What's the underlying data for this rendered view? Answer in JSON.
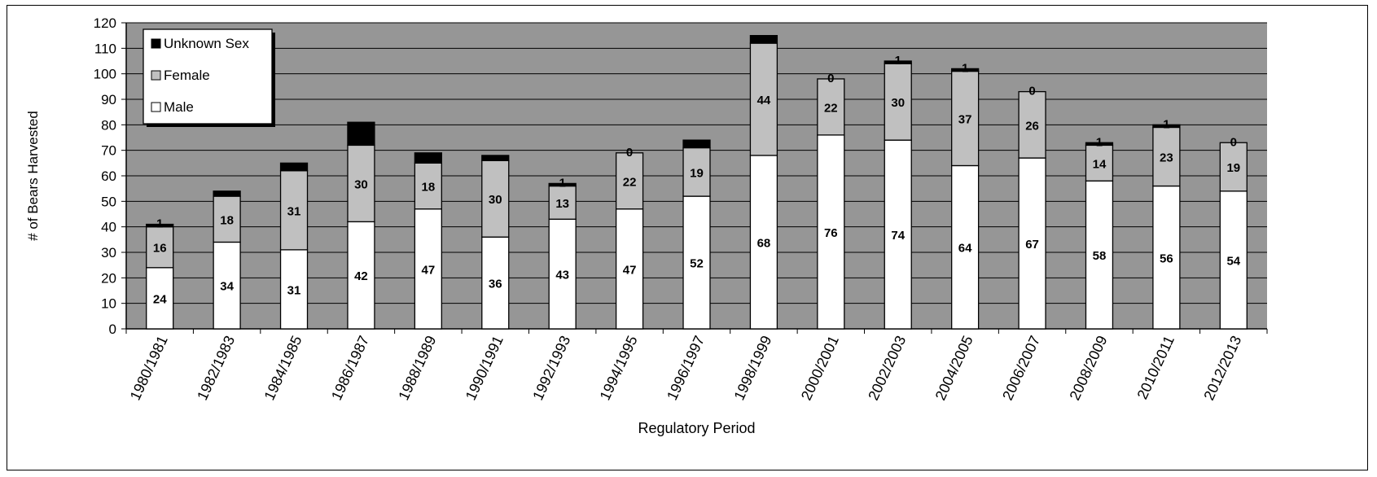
{
  "chart_data": {
    "type": "bar",
    "stacked": true,
    "title": "",
    "xlabel": "Regulatory Period",
    "ylabel": "# of Bears Harvested",
    "ylim": [
      0,
      120
    ],
    "yticks": [
      0,
      10,
      20,
      30,
      40,
      50,
      60,
      70,
      80,
      90,
      100,
      110,
      120
    ],
    "grid": true,
    "legend_position": "top-left",
    "categories": [
      "1980/1981",
      "1982/1983",
      "1984/1985",
      "1986/1987",
      "1988/1989",
      "1990/1991",
      "1992/1993",
      "1994/1995",
      "1996/1997",
      "1998/1999",
      "2000/2001",
      "2002/2003",
      "2004/2005",
      "2006/2007",
      "2008/2009",
      "2010/2011",
      "2012/2013"
    ],
    "series": [
      {
        "name": "Male",
        "color": "#ffffff",
        "values": [
          24,
          34,
          31,
          42,
          47,
          36,
          43,
          47,
          52,
          68,
          76,
          74,
          64,
          67,
          58,
          56,
          54
        ]
      },
      {
        "name": "Female",
        "color": "#c0c0c0",
        "values": [
          16,
          18,
          31,
          30,
          18,
          30,
          13,
          22,
          19,
          44,
          22,
          30,
          37,
          26,
          14,
          23,
          19
        ]
      },
      {
        "name": "Unknown Sex",
        "color": "#000000",
        "values": [
          1,
          2,
          3,
          9,
          4,
          2,
          1,
          0,
          3,
          3,
          0,
          1,
          1,
          0,
          1,
          1,
          0
        ]
      }
    ],
    "data_labels": {
      "Male": [
        "24",
        "34",
        "31",
        "42",
        "47",
        "36",
        "43",
        "47",
        "52",
        "68",
        "76",
        "74",
        "64",
        "67",
        "58",
        "56",
        "54"
      ],
      "Female": [
        "16",
        "18",
        "31",
        "30",
        "18",
        "30",
        "13",
        "22",
        "19",
        "44",
        "22",
        "30",
        "37",
        "26",
        "14",
        "23",
        "19"
      ],
      "Unknown Sex": [
        "1",
        "",
        "",
        "",
        "",
        "",
        "1",
        "0",
        "",
        "",
        "0",
        "1",
        "1",
        "0",
        "1",
        "1",
        "0"
      ]
    },
    "legend_order": [
      "Unknown Sex",
      "Female",
      "Male"
    ],
    "plot_background": "#969696"
  }
}
